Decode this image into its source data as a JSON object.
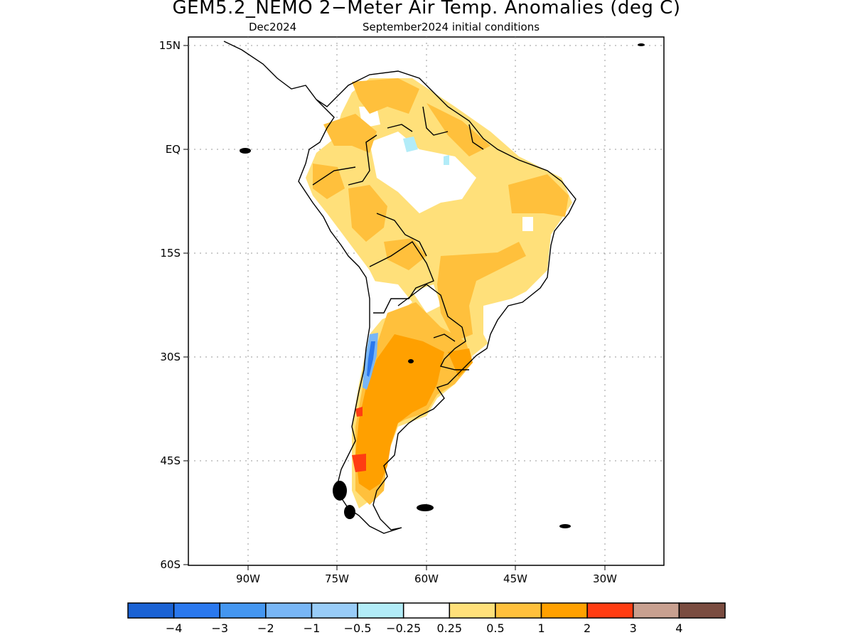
{
  "title": "GEM5.2_NEMO 2−Meter Air Temp. Anomalies (deg C)",
  "subtitle_left": "Dec2024",
  "subtitle_right": "September2024 initial conditions",
  "map": {
    "lat_ticks": [
      "15N",
      "EQ",
      "15S",
      "30S",
      "45S",
      "60S"
    ],
    "lon_ticks": [
      "90W",
      "75W",
      "60W",
      "45W",
      "30W"
    ],
    "gridlines": "dotted",
    "region": "South America"
  },
  "colorbar": {
    "colors": [
      "#1a62d4",
      "#2a78ee",
      "#4496f0",
      "#78b6f6",
      "#98ccf8",
      "#b2ecf8",
      "#ffffff",
      "#ffe07a",
      "#ffc03c",
      "#ffa000",
      "#ff3c12",
      "#c8a090",
      "#7a4c40"
    ],
    "labels": [
      "−4",
      "−3",
      "−2",
      "−1",
      "−0.5",
      "−0.25",
      "0.25",
      "0.5",
      "1",
      "2",
      "3",
      "4"
    ]
  }
}
